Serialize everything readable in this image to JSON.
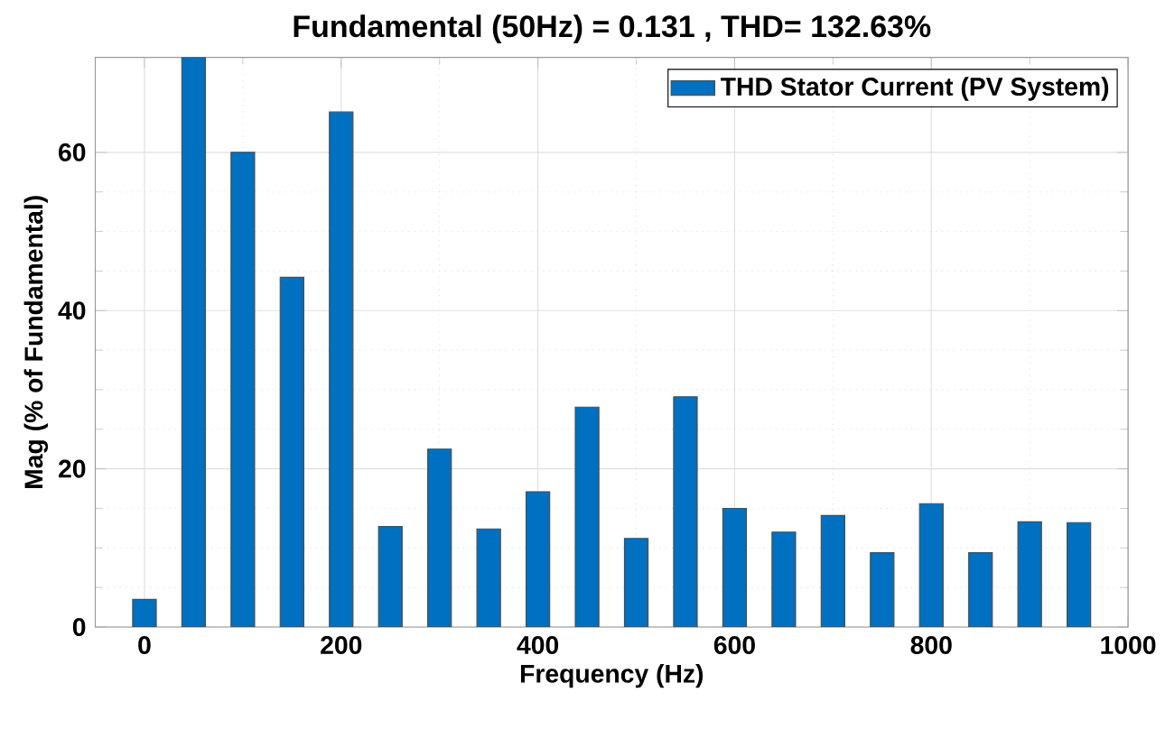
{
  "chart_data": {
    "type": "bar",
    "title": "Fundamental (50Hz) = 0.131 , THD= 132.63%",
    "xlabel": "Frequency (Hz)",
    "ylabel": "Mag (% of Fundamental)",
    "x": [
      0,
      50,
      100,
      150,
      200,
      250,
      300,
      350,
      400,
      450,
      500,
      550,
      600,
      650,
      700,
      750,
      800,
      850,
      900,
      950
    ],
    "series": [
      {
        "name": "THD Stator Current (PV System)",
        "color": "#0070c0",
        "values": [
          3.5,
          72,
          60,
          44.2,
          65.1,
          12.7,
          22.5,
          12.4,
          17.1,
          27.8,
          11.2,
          29.1,
          15.0,
          12.0,
          14.1,
          9.4,
          15.6,
          9.4,
          13.3,
          13.2
        ]
      }
    ],
    "xlim": [
      -50,
      1000
    ],
    "ylim": [
      0,
      72
    ],
    "xticks": [
      0,
      200,
      400,
      600,
      800,
      1000
    ],
    "yticks": [
      0,
      20,
      40,
      60
    ],
    "grid": true,
    "legend": "top right"
  }
}
